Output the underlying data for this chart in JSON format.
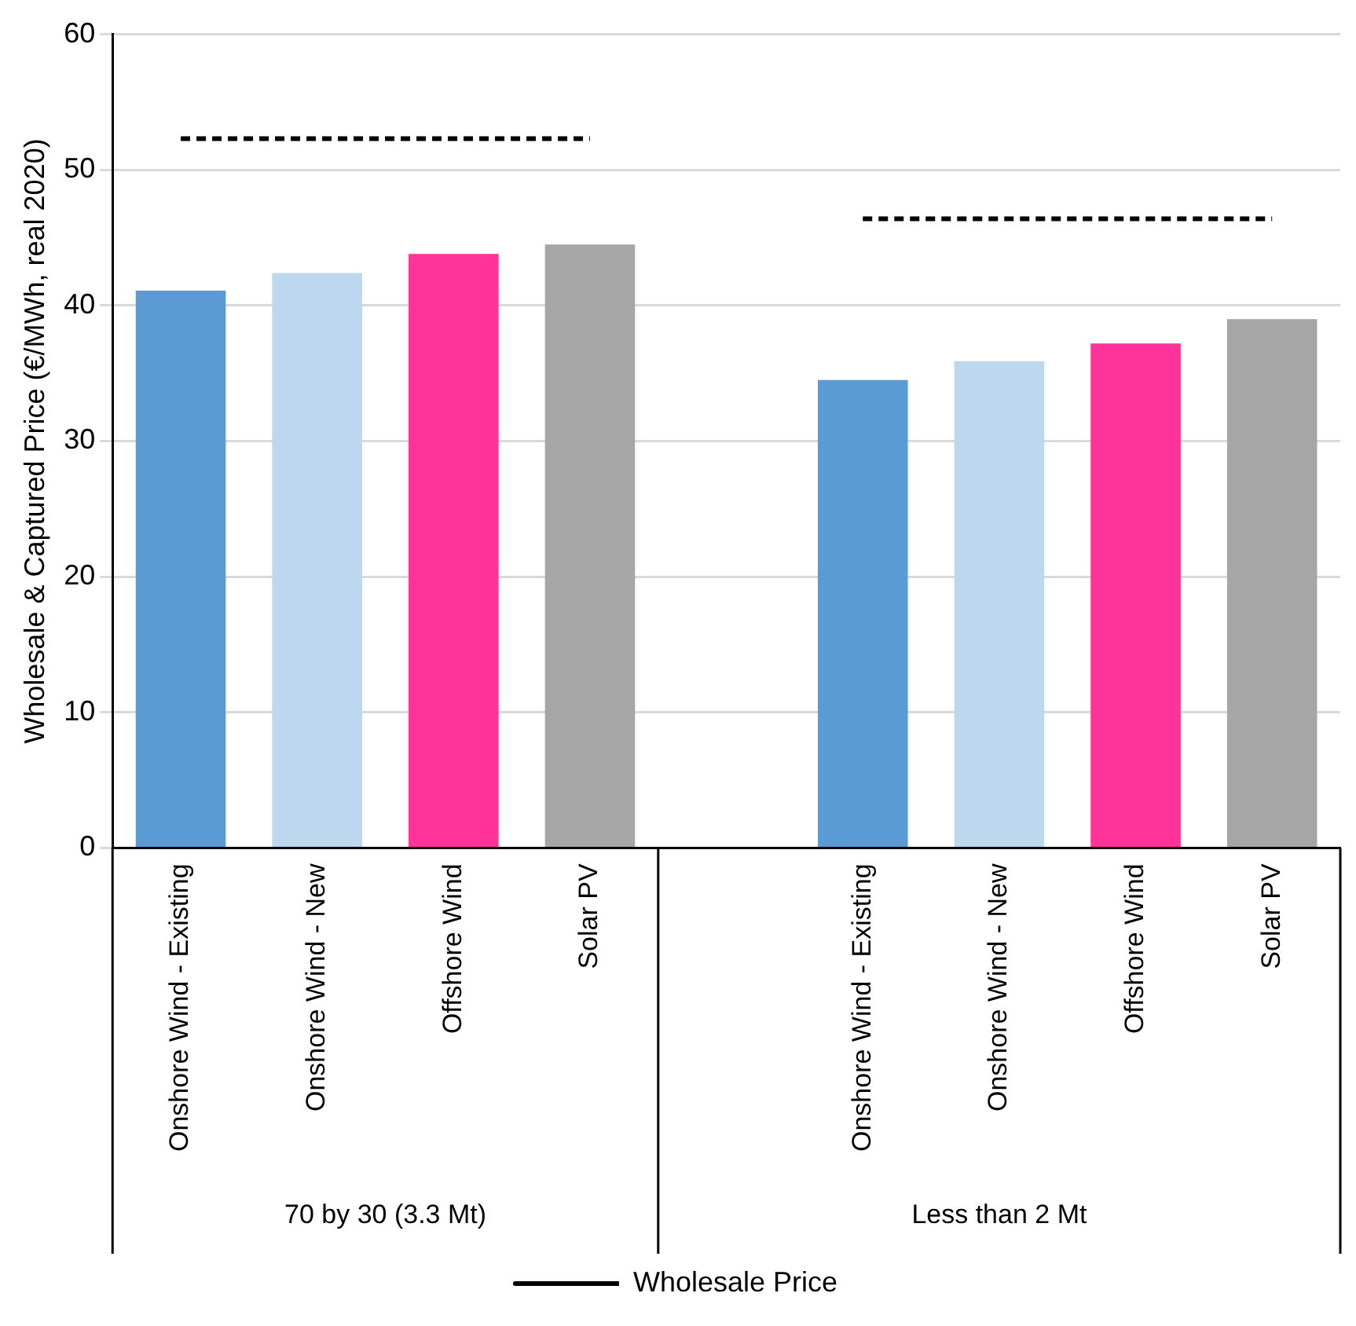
{
  "chart_data": {
    "type": "bar",
    "ylabel": "Wholesale & Captured Price (€/MWh, real 2020)",
    "categories": [
      "Onshore Wind - Existing",
      "Onshore Wind - New",
      "Offshore Wind",
      "Solar PV",
      null,
      "Onshore Wind - Existing",
      "Onshore Wind - New",
      "Offshore Wind",
      "Solar PV"
    ],
    "series": [
      {
        "colors": [
          "#5b9bd5",
          "#bdd7ee",
          "#ff3399",
          "#a6a6a6",
          null,
          "#5b9bd5",
          "#bdd7ee",
          "#ff3399",
          "#a6a6a6"
        ],
        "values": [
          41.1,
          42.4,
          43.8,
          44.5,
          null,
          34.5,
          35.9,
          37.2,
          39.0
        ]
      },
      {
        "type": "line",
        "name": "Wholesale Price",
        "color": "#000000",
        "line_style": "dashed",
        "marker": "none",
        "values": [
          52.3,
          52.3,
          52.3,
          52.3,
          null,
          46.4,
          46.4,
          46.4,
          46.4
        ]
      }
    ],
    "annotations": [
      "70 by 30 (3.3 Mt)",
      "Less than 2 Mt"
    ],
    "ylim": [
      0,
      60
    ],
    "yticks": [
      0,
      10,
      20,
      30,
      40,
      50,
      60
    ],
    "grid": "y",
    "legend": "bottom"
  }
}
